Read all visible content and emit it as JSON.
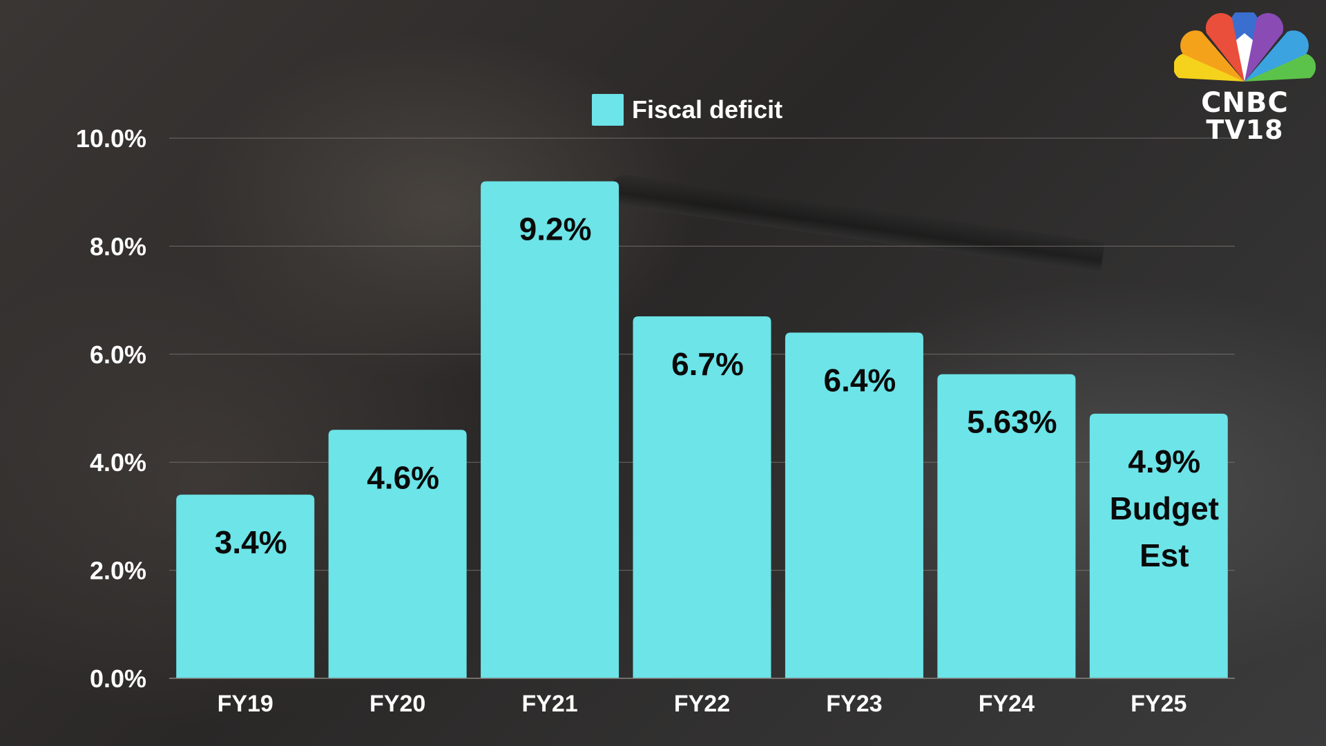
{
  "colors": {
    "bar": "#6ce4e8",
    "gridline": "#8a8580",
    "axis_text": "#ffffff",
    "data_label": "#0a0a0a"
  },
  "logo": {
    "line1": "CNBC",
    "line2": "TV18",
    "icon": "peacock-icon"
  },
  "chart_data": {
    "type": "bar",
    "categories": [
      "FY19",
      "FY20",
      "FY21",
      "FY22",
      "FY23",
      "FY24",
      "FY25"
    ],
    "series": [
      {
        "name": "Fiscal deficit",
        "values": [
          3.4,
          4.6,
          9.2,
          6.7,
          6.4,
          5.63,
          4.9
        ],
        "data_labels": [
          [
            "3.4%"
          ],
          [
            "4.6%"
          ],
          [
            "9.2%"
          ],
          [
            "6.7%"
          ],
          [
            "6.4%"
          ],
          [
            "5.63%"
          ],
          [
            "4.9%",
            "Budget",
            "Est"
          ]
        ]
      }
    ],
    "yticks": [
      "0.0%",
      "2.0%",
      "4.0%",
      "6.0%",
      "8.0%",
      "10.0%"
    ],
    "ytick_values": [
      0,
      2,
      4,
      6,
      8,
      10
    ],
    "ylim": [
      0,
      10
    ],
    "grid": true,
    "legend_position": "top-center",
    "title": "",
    "xlabel": "",
    "ylabel": ""
  }
}
